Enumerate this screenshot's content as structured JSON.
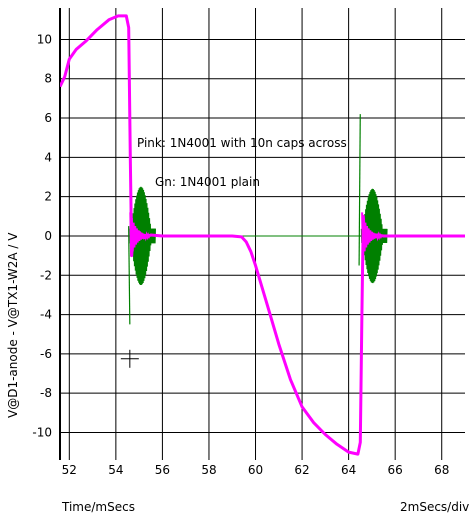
{
  "chart_data": {
    "type": "line",
    "xlabel": "Time/mSecs",
    "ylabel": "V@D1-anode - V@TX1-W2A / V",
    "scale_label": "2mSecs/div",
    "xlim": [
      51.6,
      69.0
    ],
    "ylim": [
      -11.4,
      11.6
    ],
    "grid": true,
    "x_ticks": [
      52,
      54,
      56,
      58,
      60,
      62,
      64,
      66,
      68
    ],
    "y_ticks": [
      -10,
      -8,
      -6,
      -4,
      -2,
      0,
      2,
      4,
      6,
      8,
      10
    ],
    "annotations": [
      "Pink: 1N4001 with 10n caps across",
      "Gn: 1N4001 plain"
    ],
    "series": [
      {
        "color": "#ff00ff",
        "points": [
          [
            51.6,
            7.6
          ],
          [
            51.8,
            8.1
          ],
          [
            52.0,
            9.0
          ],
          [
            52.3,
            9.5
          ],
          [
            52.7,
            9.9
          ],
          [
            53.2,
            10.5
          ],
          [
            53.7,
            11.0
          ],
          [
            54.1,
            11.2
          ],
          [
            54.45,
            11.2
          ],
          [
            54.55,
            10.6
          ],
          [
            54.62,
            4.0
          ],
          [
            54.68,
            -1.0
          ],
          [
            54.75,
            0.4
          ],
          [
            54.85,
            -0.3
          ],
          [
            55.0,
            0.2
          ],
          [
            55.2,
            -0.1
          ],
          [
            55.5,
            0.05
          ],
          [
            56.0,
            0.0
          ],
          [
            59.0,
            0.0
          ],
          [
            59.4,
            -0.05
          ],
          [
            59.6,
            -0.3
          ],
          [
            59.8,
            -0.8
          ],
          [
            60.0,
            -1.5
          ],
          [
            60.5,
            -3.5
          ],
          [
            61.0,
            -5.5
          ],
          [
            61.5,
            -7.3
          ],
          [
            62.0,
            -8.7
          ],
          [
            62.5,
            -9.5
          ],
          [
            63.0,
            -10.1
          ],
          [
            63.5,
            -10.6
          ],
          [
            64.0,
            -11.0
          ],
          [
            64.4,
            -11.1
          ],
          [
            64.5,
            -10.5
          ],
          [
            64.57,
            -4.0
          ],
          [
            64.63,
            1.0
          ],
          [
            64.7,
            -0.4
          ],
          [
            64.8,
            0.3
          ],
          [
            64.95,
            -0.15
          ],
          [
            65.2,
            0.05
          ],
          [
            65.5,
            0.0
          ],
          [
            69.0,
            0.0
          ]
        ]
      },
      {
        "color": "#008000",
        "spike_up": [
          [
            64.45,
            -1.5
          ],
          [
            64.5,
            6.2
          ]
        ],
        "spike_down": [
          [
            54.55,
            0.5
          ],
          [
            54.6,
            -4.5
          ]
        ],
        "bursts": [
          {
            "start": 54.6,
            "end": 55.7,
            "amp_pos": 2.5,
            "amp_neg": 2.5
          },
          {
            "start": 64.55,
            "end": 65.65,
            "amp_pos": 2.4,
            "amp_neg": 2.4
          }
        ]
      }
    ]
  }
}
